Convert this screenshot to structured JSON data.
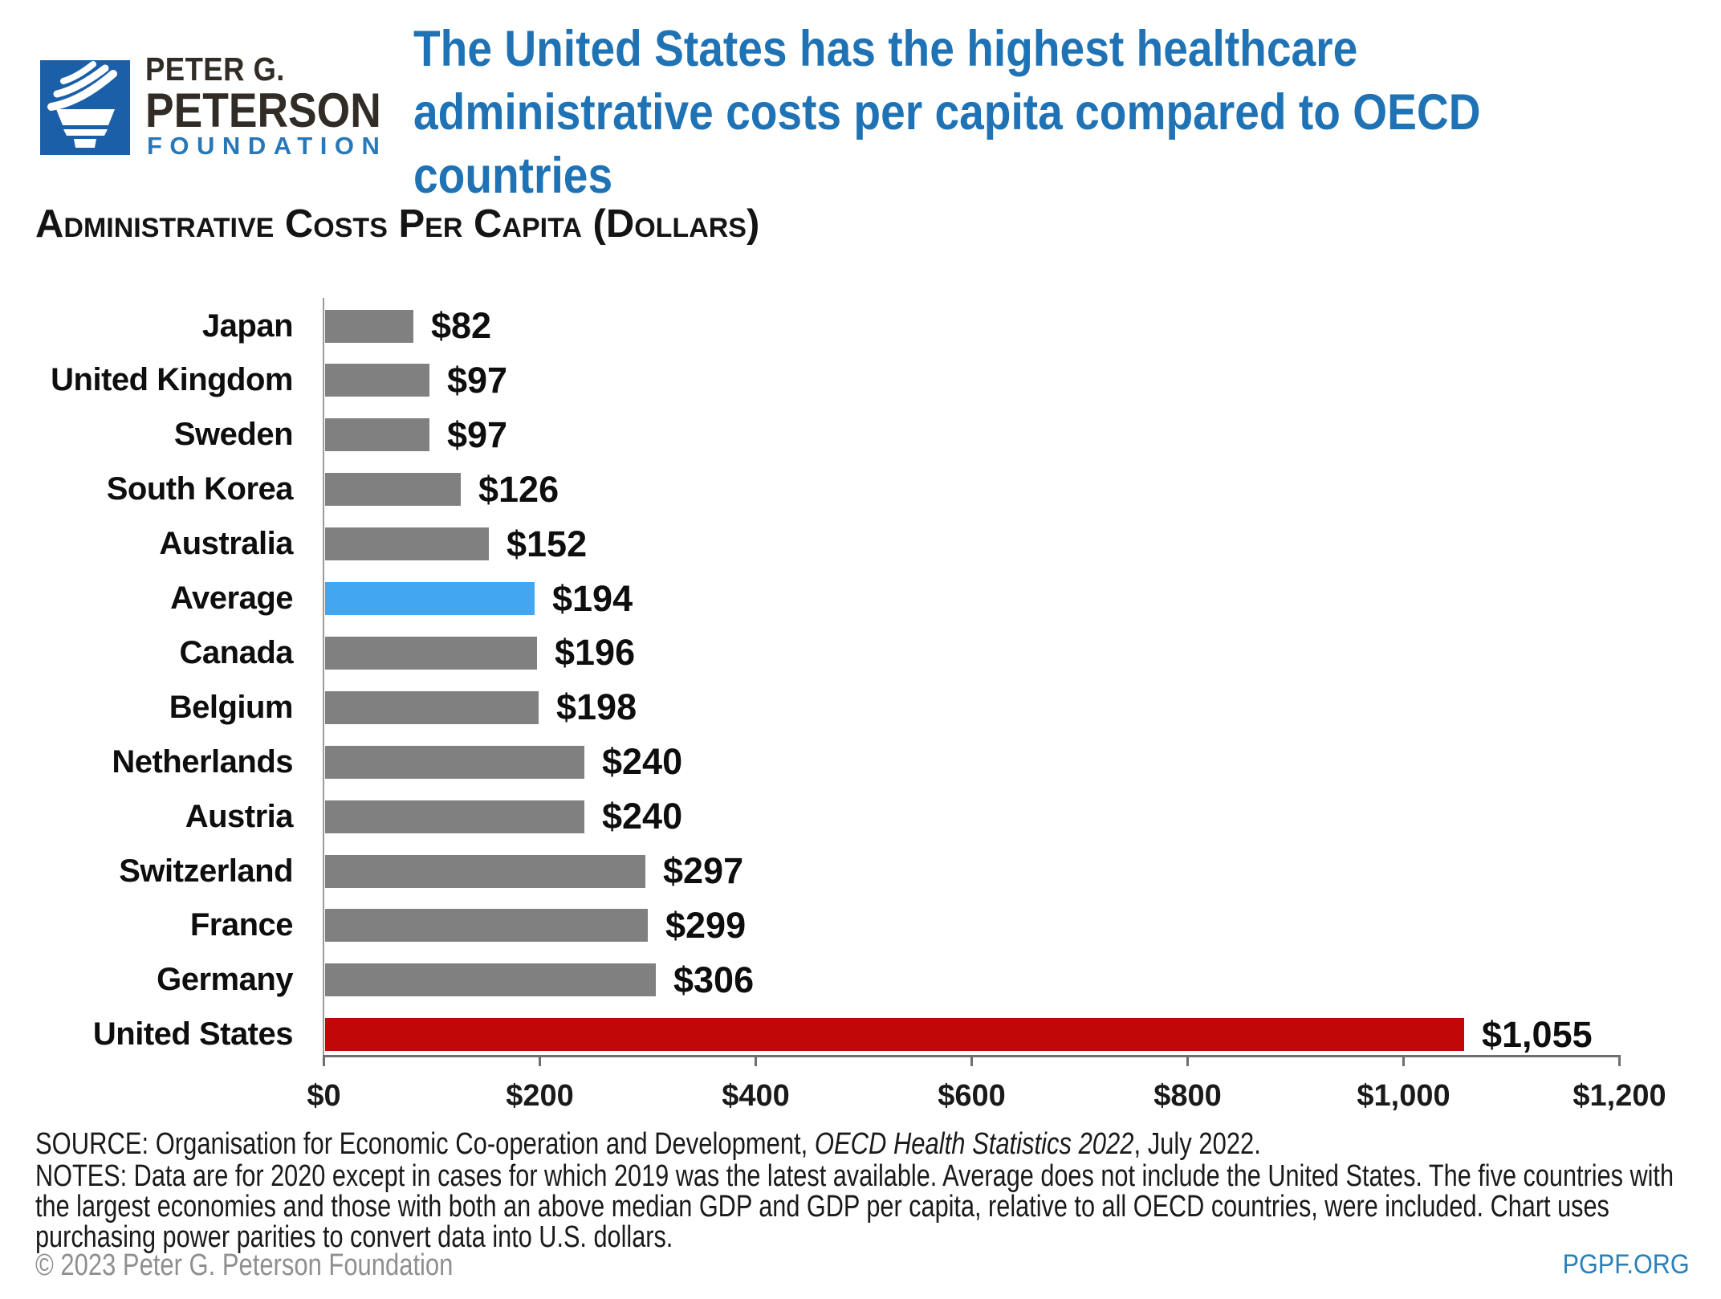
{
  "header": {
    "logo": {
      "line1": "PETER G.",
      "line2": "PETERSON",
      "line3": "FOUNDATION",
      "square_color": "#1A5FA8"
    },
    "title": "The United States has the highest healthcare administrative costs per capita compared to OECD countries",
    "title_color": "#1F72B4"
  },
  "section_header": "Administrative Costs Per Capita (Dollars)",
  "chart_data": {
    "type": "bar",
    "orientation": "horizontal",
    "title": "Administrative Costs Per Capita (Dollars)",
    "categories": [
      "Japan",
      "United Kingdom",
      "Sweden",
      "South Korea",
      "Australia",
      "Average",
      "Canada",
      "Belgium",
      "Netherlands",
      "Austria",
      "Switzerland",
      "France",
      "Germany",
      "United States"
    ],
    "values": [
      82,
      97,
      97,
      126,
      152,
      194,
      196,
      198,
      240,
      240,
      297,
      299,
      306,
      1055
    ],
    "value_labels": [
      "$82",
      "$97",
      "$97",
      "$126",
      "$152",
      "$194",
      "$196",
      "$198",
      "$240",
      "$240",
      "$297",
      "$299",
      "$306",
      "$1,055"
    ],
    "bar_colors": [
      "#808080",
      "#808080",
      "#808080",
      "#808080",
      "#808080",
      "#42A7F0",
      "#808080",
      "#808080",
      "#808080",
      "#808080",
      "#808080",
      "#808080",
      "#808080",
      "#C20709"
    ],
    "bar_color_default": "#808080",
    "highlight_average_color": "#42A7F0",
    "highlight_us_color": "#C20709",
    "xlim": [
      0,
      1200
    ],
    "x_tick_values": [
      0,
      200,
      400,
      600,
      800,
      1000,
      1200
    ],
    "x_tick_labels": [
      "$0",
      "$200",
      "$400",
      "$600",
      "$800",
      "$1,000",
      "$1,200"
    ],
    "xlabel": "",
    "ylabel": "",
    "grid": false,
    "legend": false
  },
  "footer": {
    "source": {
      "prefix": "SOURCE: Organisation for Economic Co-operation and Development, ",
      "italic": "OECD Health Statistics 2022",
      "suffix": ", July 2022."
    },
    "notes": "NOTES: Data are for 2020 except in cases for which 2019 was the latest available. Average does not include the United States. The five countries with the largest economies and those with both an above median GDP and GDP per capita, relative to all OECD countries, were included. Chart uses purchasing power parities to convert data into U.S. dollars.",
    "copyright": "© 2023 Peter G. Peterson Foundation",
    "site": "PGPF.ORG"
  }
}
